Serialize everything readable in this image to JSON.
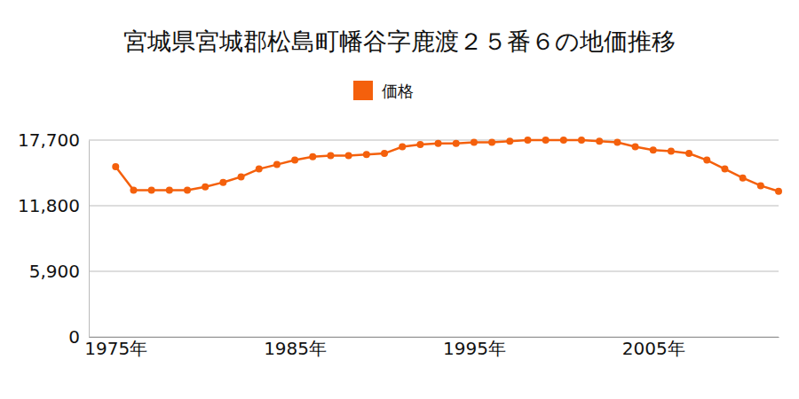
{
  "chart_data": {
    "type": "line",
    "title": "宮城県宮城郡松島町幡谷字鹿渡２５番６の地価推移",
    "x": [
      1975,
      1976,
      1977,
      1978,
      1979,
      1980,
      1981,
      1982,
      1983,
      1984,
      1985,
      1986,
      1987,
      1988,
      1989,
      1990,
      1991,
      1992,
      1993,
      1994,
      1995,
      1996,
      1997,
      1998,
      1999,
      2000,
      2001,
      2002,
      2003,
      2004,
      2005,
      2006,
      2007,
      2008,
      2009,
      2010,
      2011,
      2012
    ],
    "series": [
      {
        "name": "価格",
        "color": "#f4600c",
        "marker": "circle",
        "values": [
          15300,
          13200,
          13200,
          13200,
          13200,
          13500,
          13900,
          14400,
          15100,
          15500,
          15900,
          16200,
          16300,
          16300,
          16400,
          16500,
          17100,
          17300,
          17400,
          17400,
          17500,
          17500,
          17600,
          17700,
          17700,
          17700,
          17700,
          17600,
          17500,
          17100,
          16800,
          16700,
          16500,
          15900,
          15100,
          14300,
          13600,
          13100
        ]
      }
    ],
    "xlim": [
      1973.5,
      2012
    ],
    "xticks": [
      {
        "value": 1975,
        "label": "1975年"
      },
      {
        "value": 1985,
        "label": "1985年"
      },
      {
        "value": 1995,
        "label": "1995年"
      },
      {
        "value": 2005,
        "label": "2005年"
      }
    ],
    "ylim": [
      0,
      17700
    ],
    "yticks": [
      0,
      {
        "value": 5900,
        "label": "5,900"
      },
      {
        "value": 11800,
        "label": "11,800"
      },
      {
        "value": 17700,
        "label": "17,700"
      }
    ],
    "grid": true,
    "legend": "top"
  }
}
